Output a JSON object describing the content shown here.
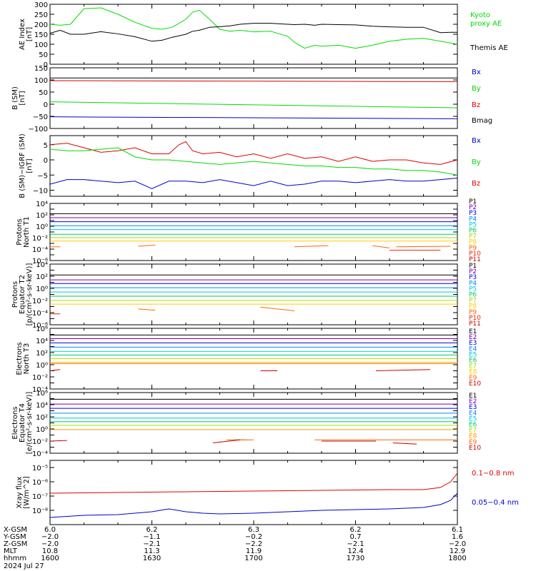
{
  "colors": {
    "black": "#000000",
    "green": "#00dd00",
    "red": "#e00000",
    "blue": "#0000cc",
    "kyoto": "#00dd00",
    "themis": "#000000"
  },
  "panel_text": {
    "ae_y": [
      "AE Index",
      "[nT]"
    ],
    "b_y": [
      "B (SM)",
      "[nT]"
    ],
    "db_y": [
      "B (SM)−IGRF (SM)",
      "[nT]"
    ],
    "p1_y": [
      "Protons",
      "North T1"
    ],
    "p2_y": [
      "Protons",
      "Equator T2",
      "[p/(cm²-s-sr-keV)]"
    ],
    "e3_y": [
      "Electrons",
      "North T3"
    ],
    "e4_y": [
      "Electrons",
      "Equator T4",
      "[e/(cm²-s-sr-keV)]"
    ],
    "x_y": [
      "Xray flux",
      "[W/m^2]"
    ]
  },
  "legends": {
    "ae": [
      "Kyoto",
      "proxy AE",
      "Themis AE"
    ],
    "b": [
      "Bx",
      "By",
      "Bz",
      "Bmag"
    ],
    "db": [
      "Bx",
      "By",
      "Bz"
    ],
    "protons": [
      "P1",
      "P2",
      "P3",
      "P4",
      "P5",
      "P6",
      "P7",
      "P8",
      "P9",
      "P10",
      "P11"
    ],
    "electrons": [
      "E1",
      "E2",
      "E3",
      "E4",
      "E5",
      "E6",
      "E7",
      "E8",
      "E9",
      "E10"
    ],
    "xray": [
      "0.1−0.8 nm",
      "0.05−0.4 nm"
    ]
  },
  "ephemeris": {
    "row_labels": [
      "X-GSM",
      "Y-GSM",
      "Z-GSM",
      "MLT",
      "hhmm",
      "2024 Jul 27"
    ],
    "columns": [
      [
        "6.0",
        "−2.0",
        "−2.0",
        "10.8",
        "1600"
      ],
      [
        "6.2",
        "−1.1",
        "−2.1",
        "11.3",
        "1630"
      ],
      [
        "6.3",
        "−0.2",
        "−2.2",
        "11.9",
        "1700"
      ],
      [
        "6.2",
        "0.7",
        "−2.1",
        "12.4",
        "1730"
      ],
      [
        "6.1",
        "1.6",
        "−2.0",
        "12.9",
        "1800"
      ]
    ]
  },
  "chart_data": [
    {
      "type": "line",
      "name": "ae",
      "ylim": [
        0,
        300
      ],
      "yticks": [
        "0",
        "50",
        "100",
        "150",
        "200",
        "250",
        "300"
      ],
      "x_minutes": [
        0,
        120
      ],
      "series": [
        {
          "name": "Kyoto proxy AE",
          "color": "#00dd00",
          "x": [
            0,
            3,
            6,
            10,
            15,
            20,
            25,
            30,
            33,
            36,
            40,
            42,
            44,
            47,
            50,
            53,
            56,
            60,
            65,
            70,
            72,
            75,
            78,
            80,
            85,
            90,
            95,
            100,
            105,
            110,
            115,
            120
          ],
          "y": [
            200,
            195,
            200,
            278,
            282,
            250,
            210,
            180,
            175,
            185,
            225,
            260,
            270,
            225,
            175,
            165,
            170,
            162,
            165,
            140,
            110,
            80,
            95,
            90,
            95,
            80,
            95,
            115,
            125,
            130,
            115,
            100
          ]
        },
        {
          "name": "Themis AE",
          "color": "#000000",
          "x": [
            0,
            3,
            6,
            10,
            15,
            20,
            25,
            30,
            33,
            36,
            40,
            42,
            44,
            47,
            50,
            53,
            56,
            60,
            65,
            70,
            72,
            75,
            78,
            80,
            85,
            90,
            95,
            100,
            105,
            110,
            115,
            118,
            120
          ],
          "y": [
            155,
            170,
            150,
            150,
            163,
            152,
            138,
            115,
            120,
            135,
            150,
            165,
            170,
            185,
            188,
            192,
            200,
            205,
            205,
            200,
            198,
            200,
            195,
            200,
            198,
            197,
            190,
            187,
            185,
            185,
            158,
            160,
            160
          ]
        }
      ]
    },
    {
      "type": "line",
      "name": "b_sm",
      "ylim": [
        -100,
        150
      ],
      "yticks": [
        "−100",
        "−50",
        "0",
        "50",
        "100",
        "150"
      ],
      "series": [
        {
          "name": "Bx",
          "color": "#000000",
          "x": [
            0,
            120
          ],
          "y": [
            108,
            108
          ]
        },
        {
          "name": "By",
          "color": "#00dd00",
          "x": [
            0,
            120
          ],
          "y": [
            10,
            -15
          ]
        },
        {
          "name": "Bz",
          "color": "#e00000",
          "x": [
            0,
            120
          ],
          "y": [
            97,
            93
          ]
        },
        {
          "name": "Bmag",
          "color": "#0000cc",
          "x": [
            0,
            120
          ],
          "y": [
            -52,
            -60
          ]
        }
      ]
    },
    {
      "type": "line",
      "name": "b_minus_igrf",
      "ylim": [
        -12,
        8
      ],
      "yticks": [
        "−10",
        "−5",
        "0",
        "5"
      ],
      "series": [
        {
          "name": "Bz",
          "color": "#e00000",
          "x": [
            0,
            5,
            10,
            15,
            20,
            25,
            30,
            35,
            38,
            40,
            42,
            45,
            50,
            55,
            60,
            65,
            70,
            75,
            80,
            85,
            90,
            95,
            100,
            105,
            110,
            115,
            120
          ],
          "y": [
            5,
            5.5,
            4,
            2.5,
            3,
            4,
            2,
            2,
            5,
            6,
            3,
            2,
            2.5,
            1,
            2,
            0.5,
            2,
            0.5,
            1,
            -0.5,
            1,
            -0.5,
            0,
            0,
            -1,
            -1.5,
            0
          ]
        },
        {
          "name": "By",
          "color": "#00dd00",
          "x": [
            0,
            5,
            10,
            15,
            20,
            25,
            30,
            35,
            40,
            45,
            50,
            55,
            60,
            65,
            70,
            75,
            80,
            85,
            90,
            95,
            100,
            105,
            110,
            115,
            120
          ],
          "y": [
            3.5,
            3,
            3,
            3.5,
            4,
            1,
            0,
            0,
            -0.5,
            -1,
            -1.5,
            -1,
            -0.5,
            -1,
            -1.5,
            -2,
            -2,
            -2.5,
            -2.5,
            -3,
            -3,
            -3.5,
            -3.5,
            -4,
            -5
          ]
        },
        {
          "name": "Bx",
          "color": "#0000cc",
          "x": [
            0,
            5,
            10,
            15,
            20,
            25,
            30,
            35,
            40,
            45,
            50,
            55,
            60,
            65,
            70,
            75,
            80,
            85,
            90,
            95,
            100,
            105,
            110,
            115,
            120
          ],
          "y": [
            -8,
            -6.5,
            -6.5,
            -7,
            -7.5,
            -7,
            -9.5,
            -7,
            -7,
            -7.5,
            -6.5,
            -7.5,
            -8.5,
            -7,
            -8.5,
            -8,
            -7,
            -7,
            -7.5,
            -7,
            -6.5,
            -7,
            -7,
            -6.5,
            -6
          ]
        }
      ]
    },
    {
      "type": "line",
      "name": "protons_north_t1",
      "yscale": "log",
      "ylim_exp": [
        -6,
        4
      ],
      "yticks": [
        "10⁻⁶",
        "10⁻⁴",
        "10⁻²",
        "10⁰",
        "10²",
        "10⁴"
      ],
      "series_exp": [
        2.2,
        1.5,
        0.8,
        0.1,
        -0.6,
        -1.4,
        -2,
        -2.6,
        -3.6,
        -4.2,
        null
      ],
      "series_colors": [
        "#000000",
        "#7700aa",
        "#0000dd",
        "#0088ff",
        "#00cccc",
        "#00cc66",
        "#aadd00",
        "#ffcc00",
        "#ff6600",
        "#ee2200",
        "#cc0000"
      ]
    },
    {
      "type": "line",
      "name": "protons_equator_t2",
      "yscale": "log",
      "ylim_exp": [
        -6,
        4
      ],
      "yticks": [
        "10⁻⁶",
        "10⁻⁴",
        "10⁻²",
        "10⁰",
        "10²",
        "10⁴"
      ],
      "series_exp": [
        2.2,
        1.4,
        0.8,
        0.1,
        -0.6,
        -1.3,
        -2,
        -2.6,
        -3.4,
        -4.2,
        null
      ],
      "series_colors": [
        "#000000",
        "#7700aa",
        "#0000dd",
        "#0088ff",
        "#00cccc",
        "#00cc66",
        "#aadd00",
        "#ffcc00",
        "#ff6600",
        "#ee2200",
        "#cc0000"
      ]
    },
    {
      "type": "line",
      "name": "electrons_north_t3",
      "yscale": "log",
      "ylim_exp": [
        -4,
        6
      ],
      "yticks": [
        "10⁻⁴",
        "10⁻²",
        "10⁰",
        "10²",
        "10⁴",
        "10⁶"
      ],
      "series_exp": [
        4.9,
        4.3,
        3.6,
        2.9,
        2.2,
        1.6,
        1,
        0.4,
        0.2,
        -1
      ],
      "series_colors": [
        "#000000",
        "#7700aa",
        "#0000dd",
        "#0088ff",
        "#00cccc",
        "#00cc66",
        "#aadd00",
        "#ffcc00",
        "#ff6600",
        "#cc0000"
      ]
    },
    {
      "type": "line",
      "name": "electrons_equator_t4",
      "yscale": "log",
      "ylim_exp": [
        -4,
        6
      ],
      "yticks": [
        "10⁻⁴",
        "10⁻²",
        "10⁰",
        "10²",
        "10⁴",
        "10⁶"
      ],
      "series_exp": [
        4.9,
        4.1,
        3.4,
        2.6,
        1.8,
        1.2,
        0.6,
        -0.1,
        -1.8,
        -2
      ],
      "series_colors": [
        "#000000",
        "#7700aa",
        "#0000dd",
        "#0088ff",
        "#00cccc",
        "#00cc66",
        "#aadd00",
        "#ff9900",
        "#ff6600",
        "#cc0000"
      ]
    },
    {
      "type": "line",
      "name": "xray",
      "yscale": "log",
      "ylim_exp": [
        -9,
        -4.5
      ],
      "yticks": [
        "10⁻⁸",
        "10⁻⁷",
        "10⁻⁶",
        "10⁻⁵"
      ],
      "series": [
        {
          "name": "0.1−0.8 nm",
          "color": "#e00000",
          "x": [
            0,
            20,
            40,
            60,
            80,
            100,
            110,
            115,
            118,
            120
          ],
          "y_exp": [
            -6.8,
            -6.75,
            -6.7,
            -6.65,
            -6.6,
            -6.55,
            -6.55,
            -6.4,
            -6.0,
            -5.4
          ]
        },
        {
          "name": "0.05−0.4 nm",
          "color": "#0000cc",
          "x": [
            0,
            10,
            20,
            30,
            35,
            40,
            45,
            50,
            60,
            70,
            80,
            90,
            100,
            110,
            115,
            118,
            120
          ],
          "y_exp": [
            -8.5,
            -8.35,
            -8.3,
            -8.1,
            -7.9,
            -8.1,
            -8.2,
            -8.25,
            -8.2,
            -8.1,
            -8,
            -7.95,
            -7.9,
            -7.8,
            -7.6,
            -7.3,
            -6.8
          ]
        }
      ]
    }
  ]
}
